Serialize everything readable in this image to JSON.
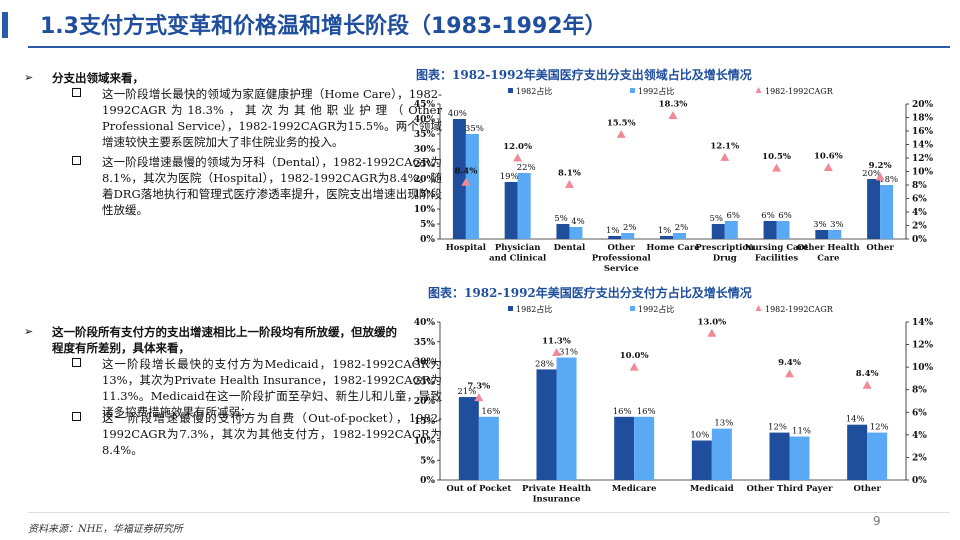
{
  "header": {
    "title": "1.3支付方式变革和价格温和增长阶段（1983-1992年）"
  },
  "left": {
    "section1": {
      "heading": "分支出领域来看，",
      "items": [
        "这一阶段增长最快的领域为家庭健康护理（Home Care），1982-1992CAGR为18.3%，其次为其他职业护理（Other Professional Service），1982-1992CAGR为15.5%。两个领域增速较快主要系医院加大了非住院业务的投入。",
        "这一阶段增速最慢的领域为牙科（Dental），1982-1992CAGR为8.1%，其次为医院（Hospital），1982-1992CAGR为8.4%。随着DRG落地执行和管理式医疗渗透率提升，医院支出增速出现阶段性放缓。"
      ]
    },
    "section2": {
      "heading": "这一阶段所有支付方的支出增速相比上一阶段均有所放缓，但放缓的程度有所差别，具体来看，",
      "items": [
        "这一阶段增长最快的支付方为Medicaid，1982-1992CAGR为13%，其次为Private Health Insurance，1982-1992CAGR为11.3%。Medicaid在这一阶段扩面至孕妇、新生儿和儿童，导致诸多控费措施效果有所减弱；",
        "这一阶段增速最慢的支付方为自费（Out-of-pocket），1982-1992CAGR为7.3%，其次为其他支付方，1982-1992CAGR为8.4%。"
      ]
    }
  },
  "colors": {
    "dark": "#1f4e9d",
    "light": "#5aa9f5",
    "marker": "#f08a96",
    "title_blue": "#1f4e9d"
  },
  "charts": [
    {
      "title": "图表：1982-1992年美国医疗支出分支出领域占比及增长情况",
      "legend": [
        "1982占比",
        "1992占比",
        "1982-1992CAGR"
      ],
      "left_ticks": [
        "0%",
        "5%",
        "10%",
        "15%",
        "20%",
        "25%",
        "30%",
        "35%",
        "40%",
        "45%"
      ],
      "right_ticks": [
        "0%",
        "2%",
        "4%",
        "6%",
        "8%",
        "10%",
        "12%",
        "14%",
        "16%",
        "18%",
        "20%"
      ]
    },
    {
      "title": "图表：1982-1992年美国医疗支出分支付方占比及增长情况",
      "legend": [
        "1982占比",
        "1992占比",
        "1982-1992CAGR"
      ],
      "left_ticks": [
        "0%",
        "5%",
        "10%",
        "15%",
        "20%",
        "25%",
        "30%",
        "35%",
        "40%"
      ],
      "right_ticks": [
        "0%",
        "2%",
        "4%",
        "6%",
        "8%",
        "10%",
        "12%",
        "14%"
      ]
    }
  ],
  "chart_data": [
    {
      "type": "bar",
      "title": "图表：1982-1992年美国医疗支出分支出领域占比及增长情况",
      "categories": [
        "Hospital",
        "Physician and Clinical",
        "Dental",
        "Other Professional Service",
        "Home Care",
        "Prescription Drug",
        "Nursing Care Facilities",
        "Other Health Care",
        "Other"
      ],
      "series": [
        {
          "name": "1982占比",
          "values": [
            40,
            19,
            5,
            1,
            1,
            5,
            6,
            3,
            20
          ],
          "labels": [
            "40%",
            "19%",
            "5%",
            "1%",
            "1%",
            "5%",
            "6%",
            "3%",
            "20%"
          ]
        },
        {
          "name": "1992占比",
          "values": [
            35,
            22,
            4,
            2,
            2,
            6,
            6,
            3,
            18
          ],
          "labels": [
            "35%",
            "22%",
            "4%",
            "2%",
            "2%",
            "6%",
            "6%",
            "3%",
            "18%"
          ]
        },
        {
          "name": "1982-1992CAGR",
          "type": "scatter",
          "axis": "right",
          "values": [
            8.4,
            12.0,
            8.1,
            15.5,
            18.3,
            12.1,
            10.5,
            10.6,
            9.2
          ],
          "labels": [
            "8.4%",
            "12.0%",
            "8.1%",
            "15.5%",
            "18.3%",
            "12.1%",
            "10.5%",
            "10.6%",
            "9.2%"
          ]
        }
      ],
      "ylim": [
        0,
        45
      ],
      "y2lim": [
        0,
        20
      ],
      "legend": "top",
      "grid": false
    },
    {
      "type": "bar",
      "title": "图表：1982-1992年美国医疗支出分支付方占比及增长情况",
      "categories": [
        "Out of Pocket",
        "Private Health Insurance",
        "Medicare",
        "Medicaid",
        "Other Third Payer",
        "Other"
      ],
      "series": [
        {
          "name": "1982占比",
          "values": [
            21,
            28,
            16,
            10,
            12,
            14
          ],
          "labels": [
            "21%",
            "28%",
            "16%",
            "10%",
            "12%",
            "14%"
          ]
        },
        {
          "name": "1992占比",
          "values": [
            16,
            31,
            16,
            13,
            11,
            12
          ],
          "labels": [
            "16%",
            "31%",
            "16%",
            "13%",
            "11%",
            "12%"
          ]
        },
        {
          "name": "1982-1992CAGR",
          "type": "scatter",
          "axis": "right",
          "values": [
            7.3,
            11.3,
            10.0,
            13.0,
            9.4,
            8.4
          ],
          "labels": [
            "7.3%",
            "11.3%",
            "10.0%",
            "13.0%",
            "9.4%",
            "8.4%"
          ]
        }
      ],
      "ylim": [
        0,
        40
      ],
      "y2lim": [
        0,
        14
      ],
      "legend": "top",
      "grid": false
    }
  ],
  "footer": {
    "source": "资料来源：NHE，华福证券研究所",
    "page": "9"
  }
}
